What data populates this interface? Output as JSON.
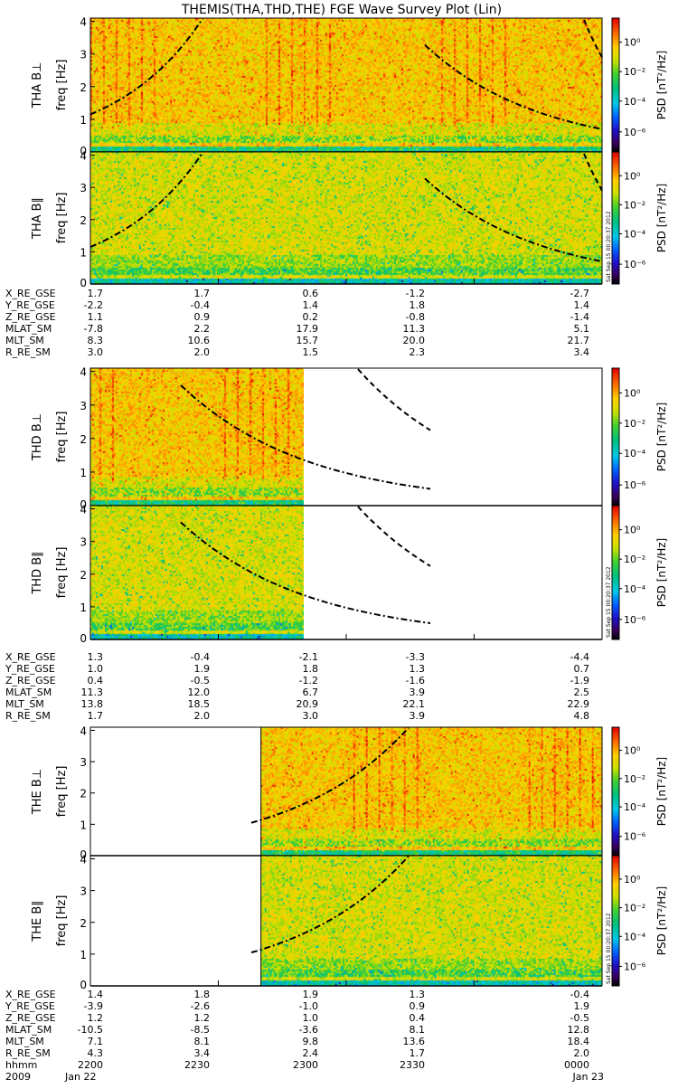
{
  "title": "THEMIS(THA,THD,THE) FGE Wave Survey Plot (Lin)",
  "colorbar": {
    "label": "PSD [nT²/Hz]",
    "ticks": [
      "10⁰",
      "10⁻²",
      "10⁻⁴",
      "10⁻⁶"
    ],
    "stamp": "Sat Sep 15 00:20:37 2012"
  },
  "freq_axis": {
    "label": "freq [Hz]",
    "ticks": [
      "0",
      "1",
      "2",
      "3",
      "4"
    ],
    "range": [
      0,
      4.1
    ]
  },
  "time_axis": {
    "range": [
      "2200",
      "0000"
    ],
    "ticks": [
      "2200",
      "2230",
      "2300",
      "2330",
      "0000"
    ],
    "row_label": "hhmm",
    "year": "2009",
    "start_date": "Jan 22",
    "end_date": "Jan 23"
  },
  "chart_data": [
    {
      "type": "heatmap",
      "probe": "THA",
      "panels": [
        {
          "label": "THA B⊥",
          "component": "perpendicular"
        },
        {
          "label": "THA B∥",
          "component": "parallel"
        }
      ],
      "data_coverage": [
        "2200",
        "0000"
      ],
      "ephemeris": {
        "rows": [
          {
            "name": "X_RE_GSE",
            "values": [
              "1.7",
              "1.7",
              "0.6",
              "-1.2",
              "-2.7"
            ]
          },
          {
            "name": "Y_RE_GSE",
            "values": [
              "-2.2",
              "-0.4",
              "1.4",
              "1.8",
              "1.4"
            ]
          },
          {
            "name": "Z_RE_GSE",
            "values": [
              "1.1",
              "0.9",
              "0.2",
              "-0.8",
              "-1.4"
            ]
          },
          {
            "name": "MLAT_SM",
            "values": [
              "-7.8",
              "2.2",
              "17.9",
              "11.3",
              "5.1"
            ]
          },
          {
            "name": "MLT_SM",
            "values": [
              "8.3",
              "10.6",
              "15.7",
              "20.0",
              "21.7"
            ]
          },
          {
            "name": "R_RE_SM",
            "values": [
              "3.0",
              "2.0",
              "1.5",
              "2.3",
              "3.4"
            ]
          }
        ]
      }
    },
    {
      "type": "heatmap",
      "probe": "THD",
      "panels": [
        {
          "label": "THD B⊥",
          "component": "perpendicular"
        },
        {
          "label": "THD B∥",
          "component": "parallel"
        }
      ],
      "data_coverage": [
        "2200",
        "2250"
      ],
      "ephemeris": {
        "rows": [
          {
            "name": "X_RE_GSE",
            "values": [
              "1.3",
              "-0.4",
              "-2.1",
              "-3.3",
              "-4.4"
            ]
          },
          {
            "name": "Y_RE_GSE",
            "values": [
              "1.0",
              "1.9",
              "1.8",
              "1.3",
              "0.7"
            ]
          },
          {
            "name": "Z_RE_GSE",
            "values": [
              "0.4",
              "-0.5",
              "-1.2",
              "-1.6",
              "-1.9"
            ]
          },
          {
            "name": "MLAT_SM",
            "values": [
              "11.3",
              "12.0",
              "6.7",
              "3.9",
              "2.5"
            ]
          },
          {
            "name": "MLT_SM",
            "values": [
              "13.8",
              "18.5",
              "20.9",
              "22.1",
              "22.9"
            ]
          },
          {
            "name": "R_RE_SM",
            "values": [
              "1.7",
              "2.0",
              "3.0",
              "3.9",
              "4.8"
            ]
          }
        ]
      }
    },
    {
      "type": "heatmap",
      "probe": "THE",
      "panels": [
        {
          "label": "THE B⊥",
          "component": "perpendicular"
        },
        {
          "label": "THE B∥",
          "component": "parallel"
        }
      ],
      "data_coverage": [
        "2240",
        "0000"
      ],
      "ephemeris": {
        "rows": [
          {
            "name": "X_RE_GSE",
            "values": [
              "1.4",
              "1.8",
              "1.9",
              "1.3",
              "-0.4"
            ]
          },
          {
            "name": "Y_RE_GSE",
            "values": [
              "-3.9",
              "-2.6",
              "-1.0",
              "0.9",
              "1.9"
            ]
          },
          {
            "name": "Z_RE_GSE",
            "values": [
              "1.2",
              "1.2",
              "1.0",
              "0.4",
              "-0.5"
            ]
          },
          {
            "name": "MLAT_SM",
            "values": [
              "-10.5",
              "-8.5",
              "-3.6",
              "8.1",
              "12.8"
            ]
          },
          {
            "name": "MLT_SM",
            "values": [
              "7.1",
              "8.1",
              "9.8",
              "13.6",
              "18.4"
            ]
          },
          {
            "name": "R_RE_SM",
            "values": [
              "4.3",
              "3.4",
              "2.4",
              "1.7",
              "2.0"
            ]
          }
        ]
      }
    }
  ]
}
